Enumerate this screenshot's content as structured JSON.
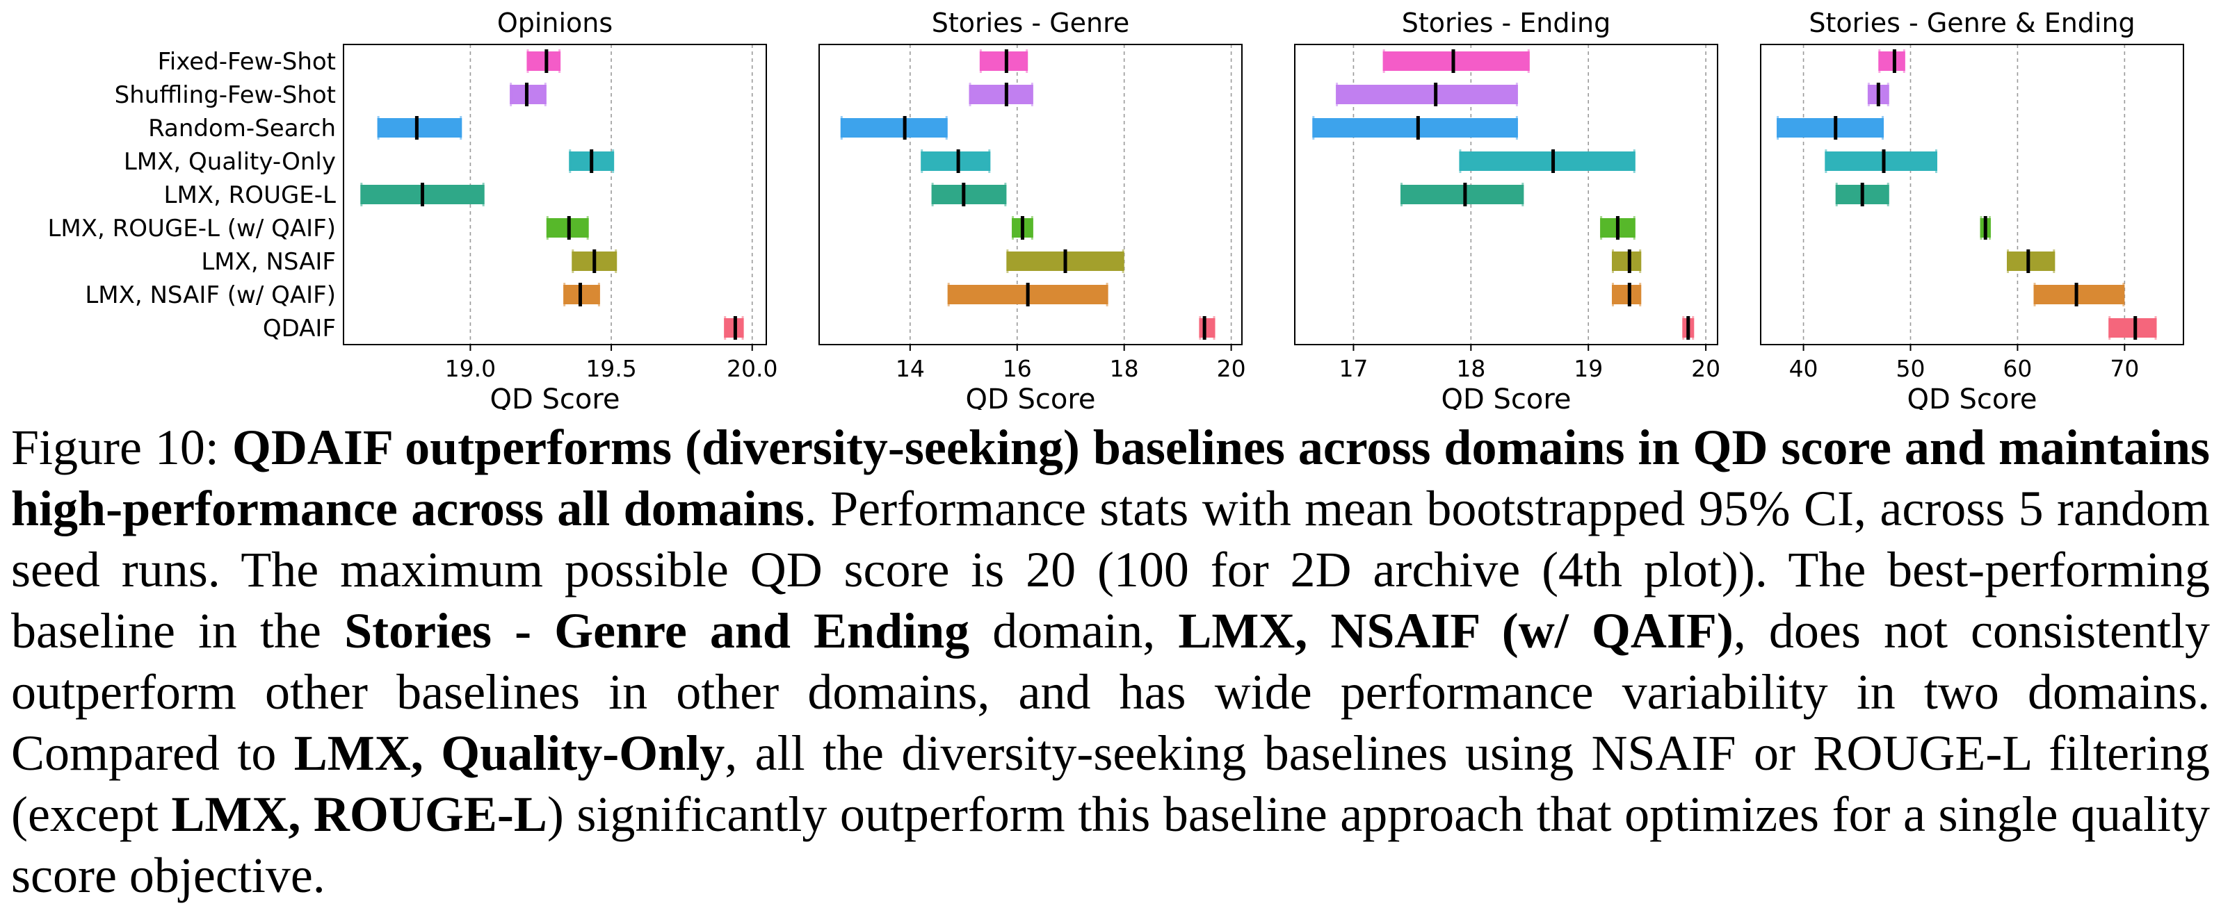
{
  "chart_data": {
    "type": "range",
    "methods": [
      "Fixed-Few-Shot",
      "Shuffling-Few-Shot",
      "Random-Search",
      "LMX, Quality-Only",
      "LMX, ROUGE-L",
      "LMX, ROUGE-L (w/ QAIF)",
      "LMX, NSAIF",
      "LMX, NSAIF (w/ QAIF)",
      "QDAIF"
    ],
    "colors": [
      "#f45cc8",
      "#c17ff0",
      "#3da3ec",
      "#2fb3ba",
      "#2fa888",
      "#57b82a",
      "#a3a02c",
      "#d98933",
      "#f5667c"
    ],
    "xlabel": "QD Score",
    "grid": "vertical dashed",
    "panels": [
      {
        "title": "Opinions",
        "xlim": [
          18.55,
          20.05
        ],
        "ticks": [
          19.0,
          19.5,
          20.0
        ],
        "tick_labels": [
          "19.0",
          "19.5",
          "20.0"
        ],
        "low": [
          19.2,
          19.14,
          18.67,
          19.35,
          18.61,
          19.27,
          19.36,
          19.33,
          19.9
        ],
        "mean": [
          19.27,
          19.2,
          18.81,
          19.43,
          18.83,
          19.35,
          19.44,
          19.39,
          19.94
        ],
        "high": [
          19.32,
          19.27,
          18.97,
          19.51,
          19.05,
          19.42,
          19.52,
          19.46,
          19.97
        ]
      },
      {
        "title": "Stories - Genre",
        "xlim": [
          12.3,
          20.2
        ],
        "ticks": [
          14,
          16,
          18,
          20
        ],
        "tick_labels": [
          "14",
          "16",
          "18",
          "20"
        ],
        "low": [
          15.3,
          15.1,
          12.7,
          14.2,
          14.4,
          15.9,
          15.8,
          14.7,
          19.4
        ],
        "mean": [
          15.8,
          15.8,
          13.9,
          14.9,
          15.0,
          16.1,
          16.9,
          16.2,
          19.5
        ],
        "high": [
          16.2,
          16.3,
          14.7,
          15.5,
          15.8,
          16.3,
          18.0,
          17.7,
          19.7
        ]
      },
      {
        "title": "Stories - Ending",
        "xlim": [
          16.5,
          20.1
        ],
        "ticks": [
          17,
          18,
          19,
          20
        ],
        "tick_labels": [
          "17",
          "18",
          "19",
          "20"
        ],
        "low": [
          17.25,
          16.85,
          16.65,
          17.9,
          17.4,
          19.1,
          19.2,
          19.2,
          19.8
        ],
        "mean": [
          17.85,
          17.7,
          17.55,
          18.7,
          17.95,
          19.25,
          19.35,
          19.35,
          19.85
        ],
        "high": [
          18.5,
          18.4,
          18.4,
          19.4,
          18.45,
          19.4,
          19.45,
          19.45,
          19.9
        ]
      },
      {
        "title": "Stories - Genre & Ending",
        "xlim": [
          36,
          75.5
        ],
        "ticks": [
          40,
          50,
          60,
          70
        ],
        "tick_labels": [
          "40",
          "50",
          "60",
          "70"
        ],
        "low": [
          47.0,
          46.0,
          37.5,
          42.0,
          43.0,
          56.5,
          59.0,
          61.5,
          68.5
        ],
        "mean": [
          48.5,
          47.0,
          43.0,
          47.5,
          45.5,
          57.0,
          61.0,
          65.5,
          71.0
        ],
        "high": [
          49.5,
          48.0,
          47.5,
          52.5,
          48.0,
          57.5,
          63.5,
          70.0,
          73.0
        ]
      }
    ]
  },
  "caption": {
    "prefix": "Figure 10: ",
    "bold1": "QDAIF outperforms (diversity-seeking) baselines across domains in QD score and maintains high-performance across all domains",
    "t1": ". Performance stats with mean bootstrapped 95% CI, across 5 random seed runs.  The maximum possible QD score is 20 (100 for 2D archive (4th plot)).  The best-performing baseline in the ",
    "bold2": "Stories - Genre and Ending",
    "t2": " domain, ",
    "bold3": "LMX, NSAIF (w/ QAIF)",
    "t3": ", does not consistently outperform other baselines in other domains, and has wide performance variability in two domains.  Compared to ",
    "bold4": "LMX, Quality-Only",
    "t4": ", all the diversity-seeking baselines using NSAIF or ROUGE-L filtering (except ",
    "bold5": "LMX, ROUGE-L",
    "t5": ") significantly outperform this baseline approach that optimizes for a single quality score objective."
  }
}
